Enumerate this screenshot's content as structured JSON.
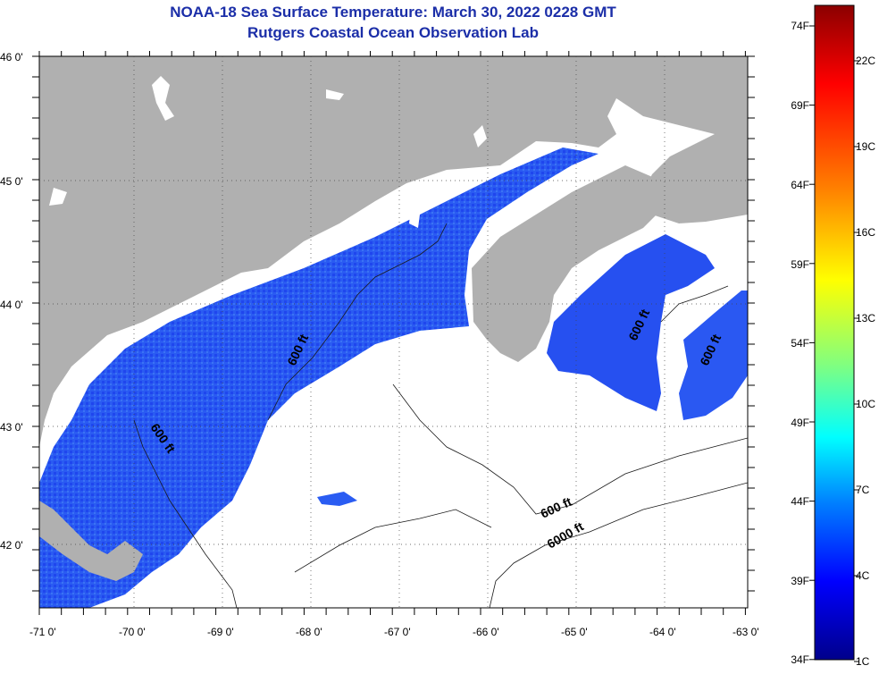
{
  "title": {
    "line1": "NOAA-18 Sea Surface Temperature:  March 30, 2022 0228 GMT",
    "line2": "Rutgers Coastal Ocean Observation Lab"
  },
  "map": {
    "x_ticks": [
      "-71 0'",
      "-70 0'",
      "-69 0'",
      "-68 0'",
      "-67 0'",
      "-66 0'",
      "-65 0'",
      "-64 0'",
      "-63 0'"
    ],
    "y_ticks": [
      "46 0'",
      "45 0'",
      "44 0'",
      "43 0'",
      "42 0'"
    ],
    "contour_labels": [
      "600 ft",
      "600 ft",
      "600 ft",
      "6000 ft",
      "600 ft",
      "600 ft"
    ],
    "colors": {
      "land": "#b0b0b0",
      "no_data": "#ffffff",
      "sst_cold": "#1a3cf0",
      "sst_cool": "#2e6cf5"
    }
  },
  "colorbar": {
    "fahrenheit": [
      "74F",
      "69F",
      "64F",
      "59F",
      "54F",
      "49F",
      "44F",
      "39F",
      "34F"
    ],
    "celsius": [
      "22C",
      "19C",
      "16C",
      "13C",
      "10C",
      "7C",
      "4C",
      "1C"
    ],
    "gradient": [
      "#8b0000",
      "#ff0000",
      "#ff8000",
      "#ffff00",
      "#80ff80",
      "#00ffff",
      "#0080ff",
      "#0000ff",
      "#00008b"
    ]
  }
}
